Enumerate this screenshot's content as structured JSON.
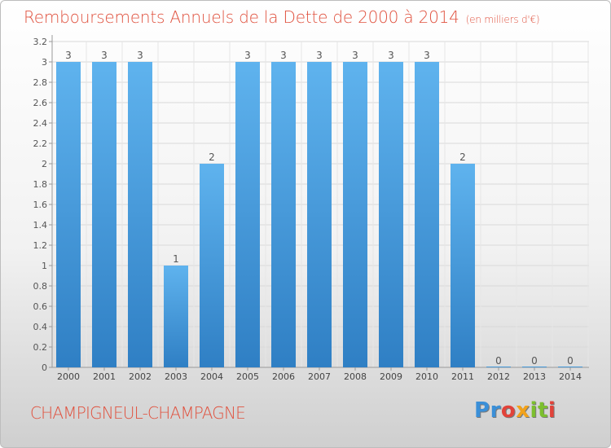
{
  "header": {
    "title": "Remboursements Annuels de la Dette de 2000 à 2014",
    "unit": "(en milliers d'€)"
  },
  "footer": {
    "commune": "CHAMPIGNEUL-CHAMPAGNE",
    "logo_letters": [
      "P",
      "r",
      "o",
      "x",
      "i",
      "t",
      "i"
    ],
    "logo_colors": [
      "#3a8fd8",
      "#3a8fd8",
      "#e2433a",
      "#f2a21b",
      "#7cbf2e",
      "#7cbf2e",
      "#e2433a"
    ]
  },
  "chart_data": {
    "type": "bar",
    "title": "Remboursements Annuels de la Dette de 2000 à 2014",
    "subtitle": "(en milliers d'€)",
    "xlabel": "",
    "ylabel": "",
    "categories": [
      "2000",
      "2001",
      "2002",
      "2003",
      "2004",
      "2005",
      "2006",
      "2007",
      "2008",
      "2009",
      "2010",
      "2011",
      "2012",
      "2013",
      "2014"
    ],
    "values": [
      3,
      3,
      3,
      1,
      2,
      3,
      3,
      3,
      3,
      3,
      3,
      2,
      0,
      0,
      0
    ],
    "value_labels": [
      "3",
      "3",
      "3",
      "1",
      "2",
      "3",
      "3",
      "3",
      "3",
      "3",
      "3",
      "2",
      "0",
      "0",
      "0"
    ],
    "ylim": [
      0,
      3.2
    ],
    "yticks": [
      "0",
      "0.2",
      "0.4",
      "0.6",
      "0.8",
      "1",
      "1.2",
      "1.4",
      "1.6",
      "1.8",
      "2",
      "2.2",
      "2.4",
      "2.6",
      "2.8",
      "3",
      "3.2"
    ],
    "grid": true,
    "bar_color": "#4da6e6"
  }
}
